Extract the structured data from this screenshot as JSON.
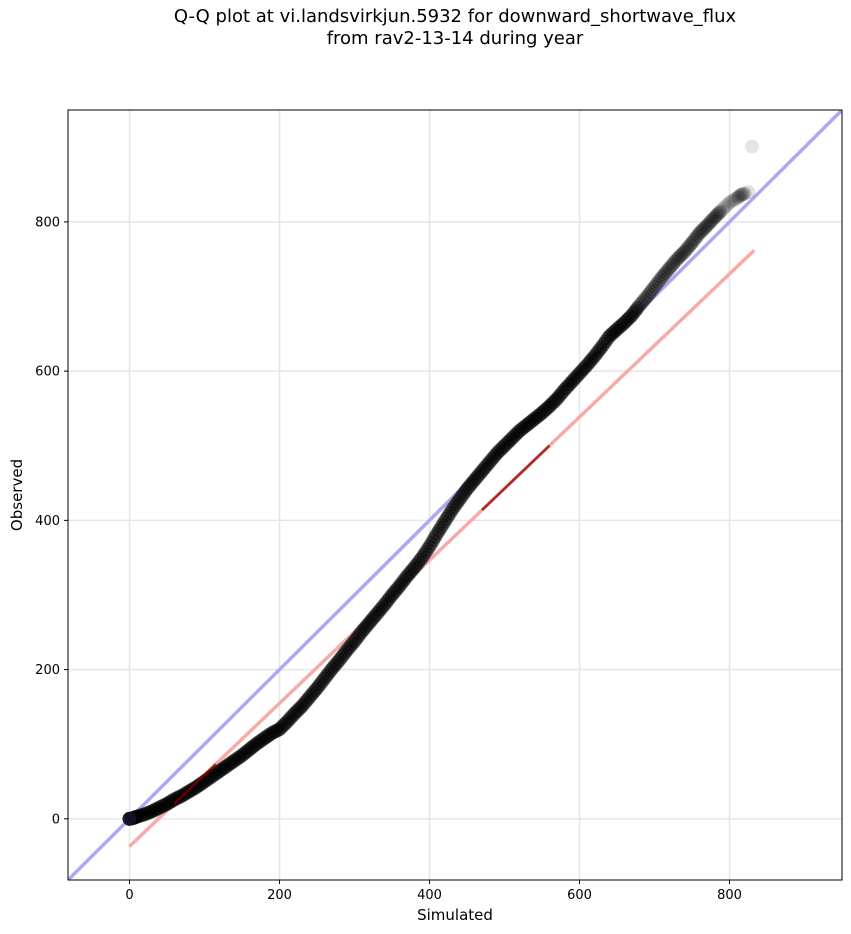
{
  "chart_data": {
    "type": "scatter",
    "title_line1": "Q-Q plot at vi.landsvirkjun.5932 for downward_shortwave_flux",
    "title_line2": "from rav2-13-14 during year",
    "xlabel": "Simulated",
    "ylabel": "Observed",
    "xlim": [
      -82,
      950
    ],
    "ylim": [
      -82,
      950
    ],
    "x_ticks": [
      0,
      200,
      400,
      600,
      800
    ],
    "y_ticks": [
      0,
      200,
      400,
      600,
      800
    ],
    "grid": true,
    "colors": {
      "points": "#000000",
      "identity_line": "#aaaaf2",
      "fit_line": "#f8aaaa",
      "fit_overlay": "#8b0000",
      "grid": "#e6e6e6"
    },
    "identity_line": {
      "name": "1:1 line",
      "x": [
        -82,
        950
      ],
      "y": [
        -82,
        950
      ]
    },
    "fit_line": {
      "name": "linear fit",
      "x": [
        0,
        833
      ],
      "y": [
        -37,
        762
      ]
    },
    "quantiles": {
      "x": [
        0,
        5,
        10,
        20,
        30,
        40,
        50,
        60,
        70,
        80,
        90,
        100,
        110,
        120,
        130,
        140,
        150,
        160,
        170,
        180,
        190,
        200,
        210,
        220,
        230,
        240,
        250,
        260,
        270,
        280,
        290,
        300,
        310,
        320,
        330,
        340,
        350,
        360,
        370,
        380,
        390,
        400,
        410,
        420,
        430,
        440,
        450,
        460,
        470,
        480,
        490,
        500,
        510,
        520,
        530,
        540,
        550,
        560,
        570,
        580,
        590,
        600,
        610,
        620,
        630,
        640,
        650,
        660,
        670,
        680,
        690,
        700,
        710,
        720,
        730,
        740,
        750,
        760,
        770,
        780,
        790,
        800,
        810,
        815,
        820,
        825,
        830
      ],
      "y": [
        0,
        1,
        3,
        6,
        10,
        15,
        20,
        26,
        31,
        37,
        43,
        50,
        57,
        64,
        71,
        78,
        85,
        93,
        101,
        108,
        115,
        120,
        130,
        141,
        151,
        163,
        175,
        188,
        201,
        213,
        226,
        238,
        251,
        263,
        275,
        287,
        300,
        312,
        325,
        337,
        350,
        365,
        382,
        398,
        414,
        428,
        442,
        454,
        466,
        478,
        490,
        500,
        510,
        520,
        528,
        536,
        544,
        553,
        563,
        575,
        586,
        597,
        608,
        620,
        633,
        647,
        656,
        665,
        675,
        688,
        700,
        713,
        726,
        738,
        750,
        760,
        772,
        785,
        795,
        806,
        816,
        826,
        832,
        836,
        838,
        840,
        901
      ],
      "n_visible_points": 87
    }
  }
}
